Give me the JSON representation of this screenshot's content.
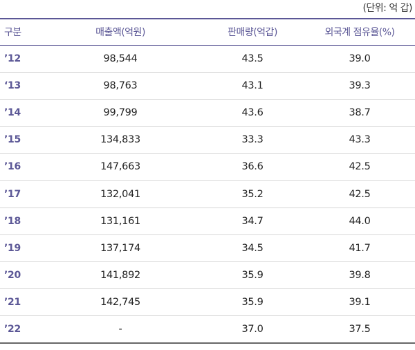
{
  "unit_note": "(단위: 억 갑)",
  "headers": [
    "구분",
    "매출액(억원)",
    "판매량(억갑)",
    "외국계 점유율(%)"
  ],
  "rows": [
    {
      "year": "’12",
      "revenue": "98,544",
      "sales": "43.5",
      "share": "39.0"
    },
    {
      "year": "‘13",
      "revenue": "98,763",
      "sales": "43.1",
      "share": "39.3"
    },
    {
      "year": "’14",
      "revenue": "99,799",
      "sales": "43.6",
      "share": "38.7"
    },
    {
      "year": "’15",
      "revenue": "134,833",
      "sales": "33.3",
      "share": "43.3"
    },
    {
      "year": "’16",
      "revenue": "147,663",
      "sales": "36.6",
      "share": "42.5"
    },
    {
      "year": "’17",
      "revenue": "132,041",
      "sales": "35.2",
      "share": "42.5"
    },
    {
      "year": "’18",
      "revenue": "131,161",
      "sales": "34.7",
      "share": "44.0"
    },
    {
      "year": "’19",
      "revenue": "137,174",
      "sales": "34.5",
      "share": "41.7"
    },
    {
      "year": "’20",
      "revenue": "141,892",
      "sales": "35.9",
      "share": "39.8"
    },
    {
      "year": "’21",
      "revenue": "142,745",
      "sales": "35.9",
      "share": "39.1"
    },
    {
      "year": "’22",
      "revenue": "-",
      "sales": "37.0",
      "share": "37.5"
    }
  ]
}
